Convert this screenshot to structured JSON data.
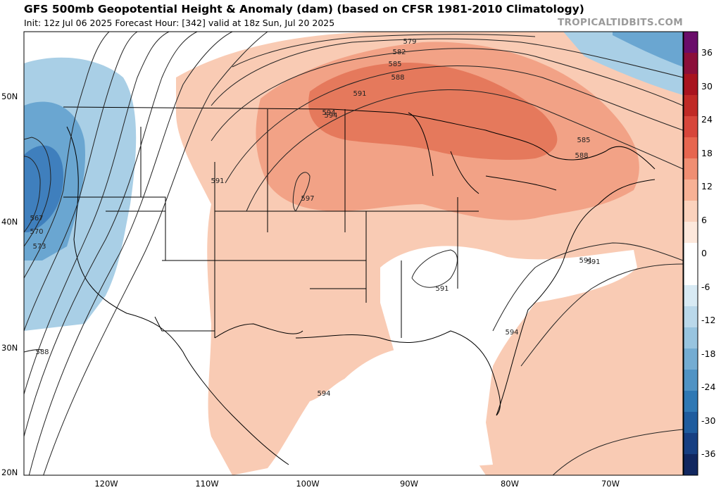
{
  "header": {
    "title": "GFS 500mb Geopotential Height & Anomaly (dam) (based on CFSR 1981-2010 Climatology)",
    "subtitle": "Init: 12z Jul 06 2025   Forecast Hour: [342]   valid at 18z Sun, Jul 20 2025",
    "brand": "TROPICALTIDBITS.COM"
  },
  "axes": {
    "lat_labels": [
      "50N",
      "40N",
      "30N",
      "20N"
    ],
    "lon_labels": [
      "120W",
      "110W",
      "100W",
      "90W",
      "80W",
      "70W"
    ]
  },
  "colorbar": {
    "labels": [
      "36",
      "30",
      "24",
      "18",
      "12",
      "6",
      "0",
      "-6",
      "-12",
      "-18",
      "-24",
      "-30",
      "-36"
    ],
    "colors": [
      "#6a0d6a",
      "#8b0f3a",
      "#a8141f",
      "#c02a26",
      "#d7463b",
      "#e7664f",
      "#f08e72",
      "#f7b195",
      "#fbd2bd",
      "#fde8dc",
      "#ffffff",
      "#ffffff",
      "#d8eaf4",
      "#bad8ea",
      "#98c4df",
      "#74acd2",
      "#5093c4",
      "#2f78b4",
      "#1f5c9e",
      "#173f82",
      "#112760"
    ]
  },
  "contour_labels": [
    "579",
    "582",
    "585",
    "588",
    "591",
    "594",
    "591",
    "597",
    "591",
    "585",
    "588",
    "591",
    "591",
    "594",
    "594",
    "594",
    "567",
    "570",
    "573",
    "588"
  ],
  "colors": {
    "warm_light": "#f9cbb4",
    "warm_mid": "#f2a286",
    "warm_strong": "#e5795c",
    "cold_light": "#a9cfe6",
    "cold_mid": "#6aa6d1",
    "cold_strong": "#3f7fbd"
  }
}
